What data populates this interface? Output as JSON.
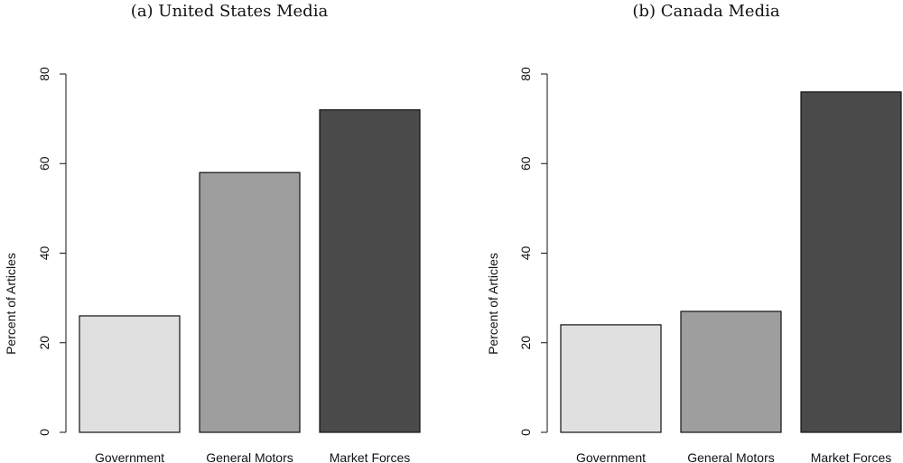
{
  "chart_data": [
    {
      "type": "bar",
      "title": "(a) United States Media",
      "ylabel": "Percent of Articles",
      "xlabel": "",
      "categories": [
        "Government",
        "General Motors",
        "Market Forces"
      ],
      "values": [
        26,
        58,
        72
      ],
      "colors": [
        "#e0e0e0",
        "#9e9e9e",
        "#4a4a4a"
      ],
      "ylim": [
        0,
        80
      ],
      "yticks": [
        0,
        20,
        40,
        60,
        80
      ],
      "grid": false
    },
    {
      "type": "bar",
      "title": "(b) Canada Media",
      "ylabel": "Percent of Articles",
      "xlabel": "",
      "categories": [
        "Government",
        "General Motors",
        "Market Forces"
      ],
      "values": [
        24,
        27,
        76
      ],
      "colors": [
        "#e0e0e0",
        "#9e9e9e",
        "#4a4a4a"
      ],
      "ylim": [
        0,
        80
      ],
      "yticks": [
        0,
        20,
        40,
        60,
        80
      ],
      "grid": false
    }
  ]
}
